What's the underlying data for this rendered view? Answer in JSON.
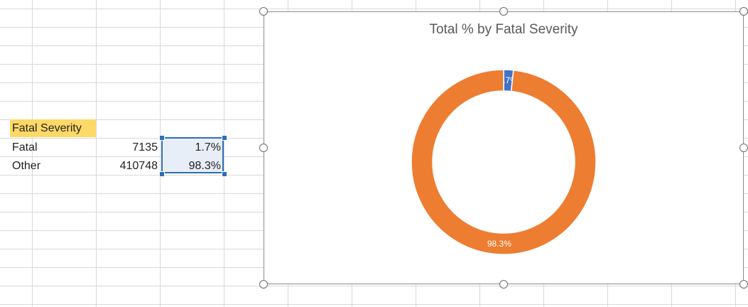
{
  "table": {
    "header": "Fatal Severity",
    "rows": [
      {
        "label": "Fatal",
        "count": "7135",
        "percent": "1.7%"
      },
      {
        "label": "Other",
        "count": "410748",
        "percent": "98.3%"
      }
    ]
  },
  "chart_data": {
    "type": "pie",
    "variant": "doughnut",
    "title": "Total % by Fatal Severity",
    "categories": [
      "Fatal",
      "Other"
    ],
    "values": [
      1.7,
      98.3
    ],
    "data_labels": [
      "1.7%",
      "98.3%"
    ],
    "colors": [
      "#4472c4",
      "#ed7d31"
    ],
    "legend": "none"
  }
}
